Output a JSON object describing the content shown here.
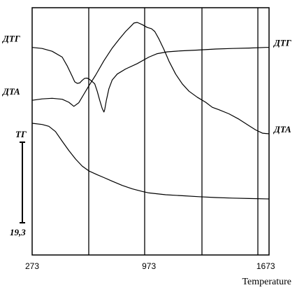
{
  "chart_data": {
    "type": "line",
    "title": "",
    "xlabel": "Temperature",
    "ylabel": "",
    "xlim": [
      273,
      1693
    ],
    "ylim": [
      0,
      100
    ],
    "x_ticks": [
      273,
      973,
      1673
    ],
    "x_tick_labels": [
      "273",
      "973",
      "1673"
    ],
    "scale_bar": {
      "top_label": "ТГ",
      "bottom_label": "19,3"
    },
    "series": [
      {
        "name": "ДТГ",
        "right_label": "ДТГ",
        "points": [
          [
            273,
            87.6
          ],
          [
            333,
            87.1
          ],
          [
            393,
            85.7
          ],
          [
            453,
            82.8
          ],
          [
            483,
            78.5
          ],
          [
            513,
            73.3
          ],
          [
            528,
            70.6
          ],
          [
            543,
            69.8
          ],
          [
            558,
            70.0
          ],
          [
            573,
            71.3
          ],
          [
            588,
            72.3
          ],
          [
            603,
            72.4
          ],
          [
            618,
            71.7
          ],
          [
            633,
            70.7
          ],
          [
            648,
            69.6
          ],
          [
            663,
            65.9
          ],
          [
            678,
            61.4
          ],
          [
            693,
            57.3
          ],
          [
            703,
            55.6
          ],
          [
            708,
            56.7
          ],
          [
            718,
            61.4
          ],
          [
            733,
            67.1
          ],
          [
            753,
            71.5
          ],
          [
            783,
            74.4
          ],
          [
            833,
            76.9
          ],
          [
            903,
            79.6
          ],
          [
            973,
            82.8
          ],
          [
            1023,
            84.5
          ],
          [
            1083,
            85.4
          ],
          [
            1163,
            85.9
          ],
          [
            1263,
            86.3
          ],
          [
            1373,
            86.8
          ],
          [
            1473,
            87.1
          ],
          [
            1573,
            87.3
          ],
          [
            1673,
            87.6
          ],
          [
            1693,
            87.6
          ]
        ]
      },
      {
        "name": "ДТА",
        "right_label": "ДТА",
        "points": [
          [
            273,
            61.4
          ],
          [
            333,
            62.1
          ],
          [
            393,
            62.4
          ],
          [
            453,
            61.9
          ],
          [
            493,
            60.4
          ],
          [
            523,
            58.4
          ],
          [
            553,
            60.2
          ],
          [
            583,
            64.4
          ],
          [
            613,
            68.6
          ],
          [
            653,
            73.8
          ],
          [
            703,
            81.0
          ],
          [
            753,
            87.3
          ],
          [
            793,
            91.5
          ],
          [
            833,
            95.5
          ],
          [
            863,
            98.0
          ],
          [
            883,
            99.7
          ],
          [
            903,
            100.0
          ],
          [
            933,
            98.9
          ],
          [
            963,
            97.5
          ],
          [
            988,
            96.9
          ],
          [
            1008,
            95.5
          ],
          [
            1033,
            91.8
          ],
          [
            1063,
            86.6
          ],
          [
            1093,
            80.8
          ],
          [
            1133,
            74.4
          ],
          [
            1173,
            69.5
          ],
          [
            1213,
            65.9
          ],
          [
            1263,
            62.9
          ],
          [
            1313,
            60.4
          ],
          [
            1353,
            57.9
          ],
          [
            1393,
            56.7
          ],
          [
            1453,
            54.7
          ],
          [
            1513,
            52.0
          ],
          [
            1573,
            48.8
          ],
          [
            1613,
            46.7
          ],
          [
            1653,
            45.1
          ],
          [
            1693,
            44.8
          ]
        ]
      },
      {
        "name": "ТГ",
        "right_label": "",
        "points": [
          [
            273,
            50.0
          ],
          [
            333,
            49.4
          ],
          [
            373,
            48.5
          ],
          [
            413,
            45.9
          ],
          [
            453,
            41.1
          ],
          [
            493,
            36.5
          ],
          [
            533,
            32.3
          ],
          [
            573,
            28.8
          ],
          [
            613,
            26.4
          ],
          [
            663,
            24.5
          ],
          [
            703,
            23.1
          ],
          [
            753,
            21.3
          ],
          [
            813,
            19.2
          ],
          [
            873,
            17.5
          ],
          [
            933,
            16.2
          ],
          [
            973,
            15.5
          ],
          [
            1073,
            14.6
          ],
          [
            1173,
            14.1
          ],
          [
            1273,
            13.6
          ],
          [
            1373,
            13.2
          ],
          [
            1473,
            12.9
          ],
          [
            1573,
            12.7
          ],
          [
            1693,
            12.5
          ]
        ]
      }
    ]
  }
}
